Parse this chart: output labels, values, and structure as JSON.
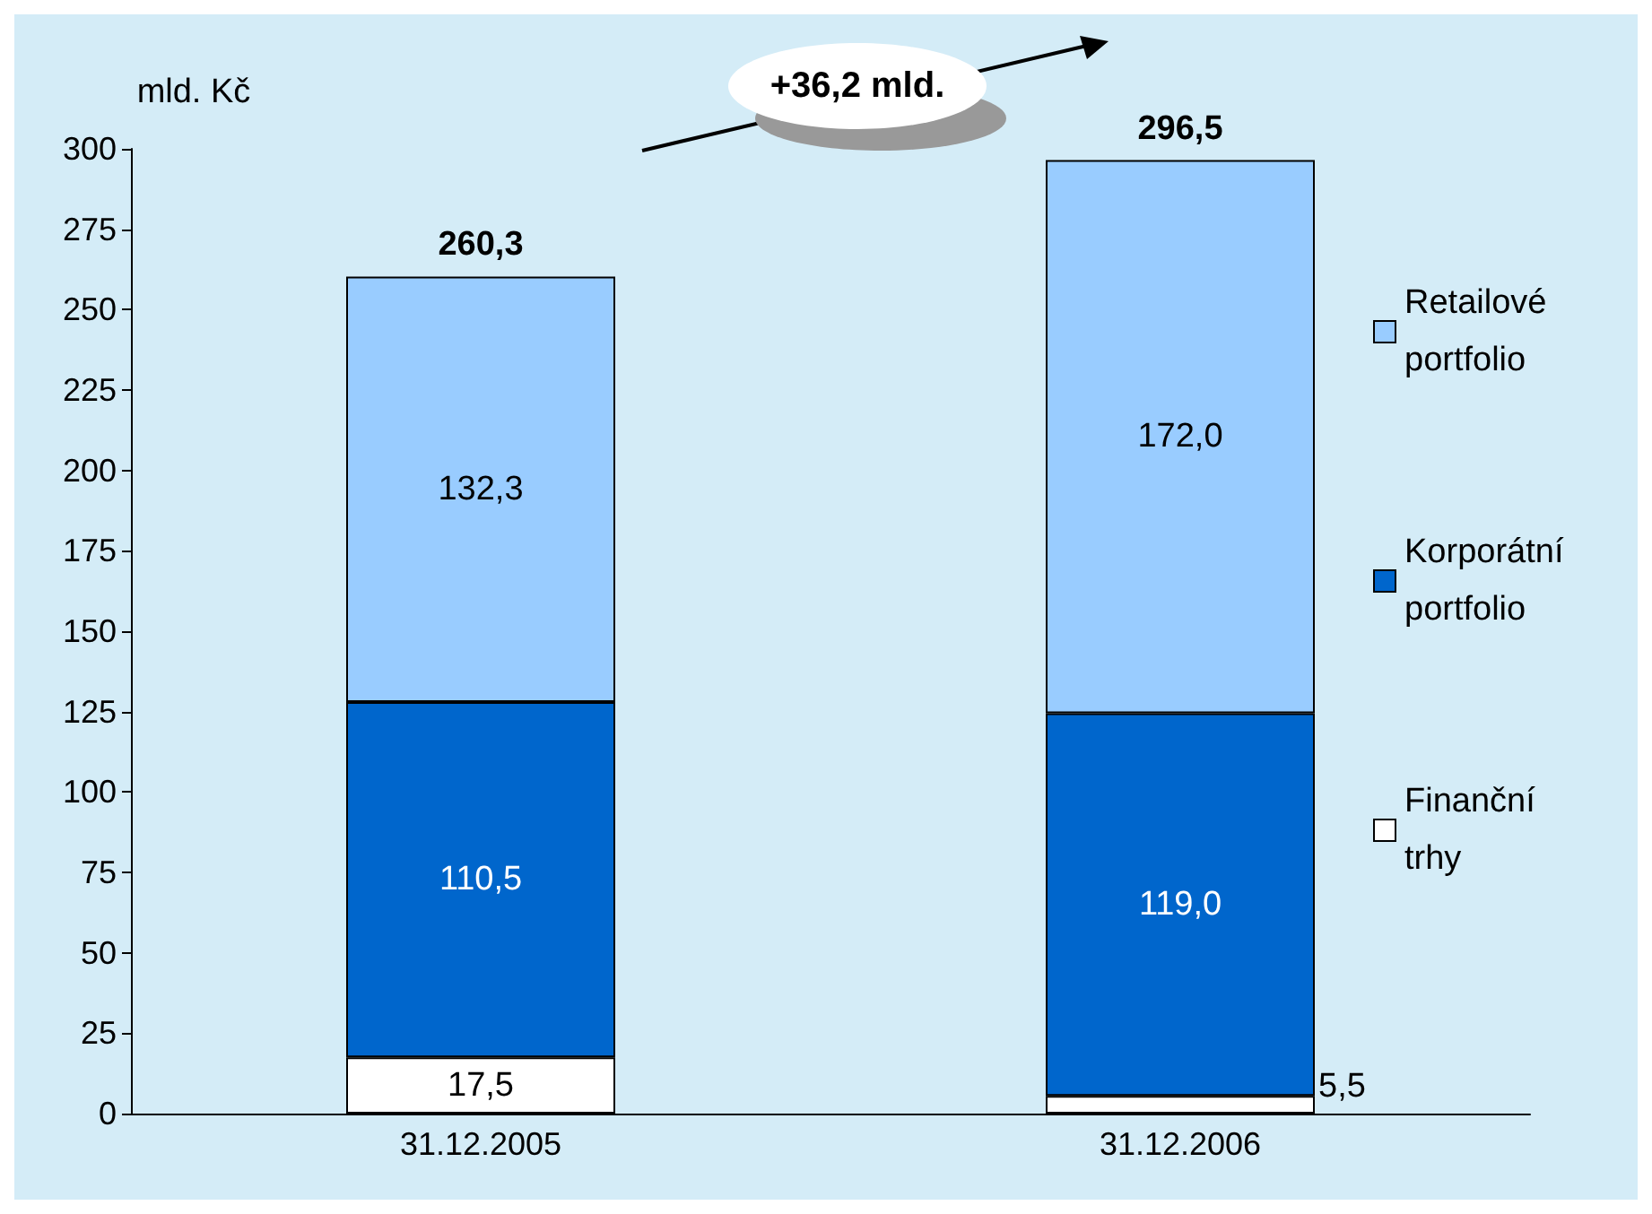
{
  "chart_data": {
    "type": "bar",
    "stacked": true,
    "ylabel": "mld. Kč",
    "categories": [
      "31.12.2005",
      "31.12.2006"
    ],
    "series": [
      {
        "name": "Finanční trhy",
        "color": "#ffffff",
        "values": [
          17.5,
          5.5
        ],
        "value_labels": [
          "17,5",
          "5,5"
        ]
      },
      {
        "name": "Korporátní portfolio",
        "color": "#0066cc",
        "values": [
          110.5,
          119.0
        ],
        "value_labels": [
          "110,5",
          "119,0"
        ]
      },
      {
        "name": "Retailové portfolio",
        "color": "#99ccff",
        "values": [
          132.3,
          172.0
        ],
        "value_labels": [
          "132,3",
          "172,0"
        ]
      }
    ],
    "totals": [
      "260,3",
      "296,5"
    ],
    "annotations": [
      "+36,2 mld."
    ],
    "ylim": [
      0,
      300
    ],
    "yticks": [
      0,
      25,
      50,
      75,
      100,
      125,
      150,
      175,
      200,
      225,
      250,
      275,
      300
    ],
    "grid": false,
    "legend": "right"
  }
}
